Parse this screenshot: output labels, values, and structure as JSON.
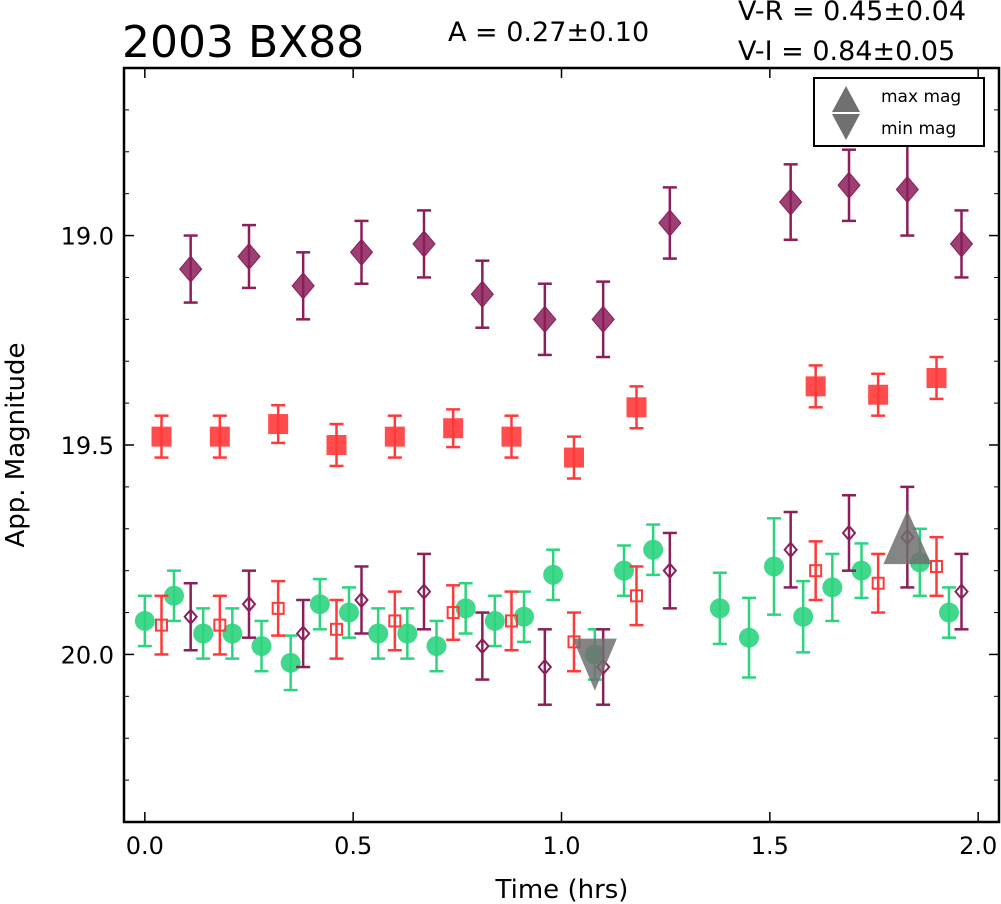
{
  "chart_data": {
    "type": "scatter",
    "title": "2003 BX88",
    "annotations": {
      "amplitude": "A  = 0.27±0.10",
      "v_r": "V-R = 0.45±0.04",
      "v_i": "V-I  = 0.84±0.05"
    },
    "xlabel": "Time (hrs)",
    "ylabel": "App. Magnitude",
    "xlim": [
      -0.05,
      2.05
    ],
    "ylim": [
      20.4,
      18.6
    ],
    "y_inverted": true,
    "x_ticks": [
      "0.0",
      "0.5",
      "1.0",
      "1.5",
      "2.0"
    ],
    "y_ticks": [
      "19.0",
      "19.5",
      "20.0"
    ],
    "legend_position": "top-right",
    "legend": [
      {
        "label": "max mag",
        "marker": "triangle-up"
      },
      {
        "label": "min mag",
        "marker": "triangle-down"
      }
    ],
    "colors": {
      "I_band": "#8b1f5a",
      "R_band": "#ff3a3a",
      "V_band": "#2dd47f",
      "extrema": "#707070"
    },
    "series": [
      {
        "marker": "diamond-filled",
        "color_key": "I_band",
        "points": [
          [
            0.11,
            19.08,
            0.08
          ],
          [
            0.25,
            19.05,
            0.075
          ],
          [
            0.38,
            19.12,
            0.08
          ],
          [
            0.52,
            19.04,
            0.075
          ],
          [
            0.67,
            19.02,
            0.08
          ],
          [
            0.81,
            19.14,
            0.08
          ],
          [
            0.96,
            19.2,
            0.085
          ],
          [
            1.1,
            19.2,
            0.09
          ],
          [
            1.26,
            18.97,
            0.085
          ],
          [
            1.55,
            18.92,
            0.09
          ],
          [
            1.69,
            18.88,
            0.085
          ],
          [
            1.83,
            18.89,
            0.11
          ],
          [
            1.96,
            19.02,
            0.08
          ]
        ]
      },
      {
        "marker": "square-filled",
        "color_key": "R_band",
        "points": [
          [
            0.04,
            19.48,
            0.05
          ],
          [
            0.18,
            19.48,
            0.05
          ],
          [
            0.32,
            19.45,
            0.045
          ],
          [
            0.46,
            19.5,
            0.05
          ],
          [
            0.6,
            19.48,
            0.05
          ],
          [
            0.74,
            19.46,
            0.045
          ],
          [
            0.88,
            19.48,
            0.05
          ],
          [
            1.03,
            19.53,
            0.05
          ],
          [
            1.18,
            19.41,
            0.05
          ],
          [
            1.61,
            19.36,
            0.05
          ],
          [
            1.76,
            19.38,
            0.05
          ],
          [
            1.9,
            19.34,
            0.05
          ]
        ]
      },
      {
        "marker": "circle-filled",
        "color_key": "V_band",
        "points": [
          [
            0.0,
            19.92,
            0.06
          ],
          [
            0.07,
            19.86,
            0.06
          ],
          [
            0.14,
            19.95,
            0.06
          ],
          [
            0.21,
            19.95,
            0.06
          ],
          [
            0.28,
            19.98,
            0.06
          ],
          [
            0.35,
            20.02,
            0.065
          ],
          [
            0.42,
            19.88,
            0.06
          ],
          [
            0.49,
            19.9,
            0.06
          ],
          [
            0.56,
            19.95,
            0.06
          ],
          [
            0.63,
            19.95,
            0.06
          ],
          [
            0.7,
            19.98,
            0.06
          ],
          [
            0.77,
            19.89,
            0.06
          ],
          [
            0.84,
            19.92,
            0.06
          ],
          [
            0.91,
            19.91,
            0.06
          ],
          [
            0.98,
            19.81,
            0.06
          ],
          [
            1.08,
            20.0,
            0.06
          ],
          [
            1.15,
            19.8,
            0.06
          ],
          [
            1.22,
            19.75,
            0.06
          ],
          [
            1.38,
            19.89,
            0.085
          ],
          [
            1.45,
            19.96,
            0.095
          ],
          [
            1.51,
            19.79,
            0.115
          ],
          [
            1.58,
            19.91,
            0.085
          ],
          [
            1.65,
            19.84,
            0.08
          ],
          [
            1.72,
            19.8,
            0.065
          ],
          [
            1.86,
            19.78,
            0.08
          ],
          [
            1.93,
            19.9,
            0.06
          ]
        ]
      },
      {
        "marker": "square-open",
        "color_key": "R_band",
        "points": [
          [
            0.04,
            19.93,
            0.07
          ],
          [
            0.18,
            19.93,
            0.07
          ],
          [
            0.32,
            19.89,
            0.065
          ],
          [
            0.46,
            19.94,
            0.07
          ],
          [
            0.6,
            19.92,
            0.07
          ],
          [
            0.74,
            19.9,
            0.065
          ],
          [
            0.88,
            19.92,
            0.07
          ],
          [
            1.03,
            19.97,
            0.07
          ],
          [
            1.18,
            19.86,
            0.07
          ],
          [
            1.61,
            19.8,
            0.07
          ],
          [
            1.76,
            19.83,
            0.07
          ],
          [
            1.9,
            19.79,
            0.07
          ]
        ]
      },
      {
        "marker": "diamond-open",
        "color_key": "I_band",
        "points": [
          [
            0.11,
            19.91,
            0.08
          ],
          [
            0.25,
            19.88,
            0.08
          ],
          [
            0.38,
            19.95,
            0.08
          ],
          [
            0.52,
            19.87,
            0.08
          ],
          [
            0.67,
            19.85,
            0.09
          ],
          [
            0.81,
            19.98,
            0.08
          ],
          [
            0.96,
            20.03,
            0.09
          ],
          [
            1.1,
            20.03,
            0.09
          ],
          [
            1.26,
            19.8,
            0.09
          ],
          [
            1.55,
            19.75,
            0.09
          ],
          [
            1.69,
            19.71,
            0.09
          ],
          [
            1.83,
            19.72,
            0.12
          ],
          [
            1.96,
            19.85,
            0.09
          ]
        ]
      }
    ],
    "extrema": [
      {
        "x": 1.08,
        "y": 20.01,
        "marker": "triangle-down",
        "label": "min mag"
      },
      {
        "x": 1.83,
        "y": 19.77,
        "marker": "triangle-up",
        "label": "max mag"
      }
    ]
  }
}
